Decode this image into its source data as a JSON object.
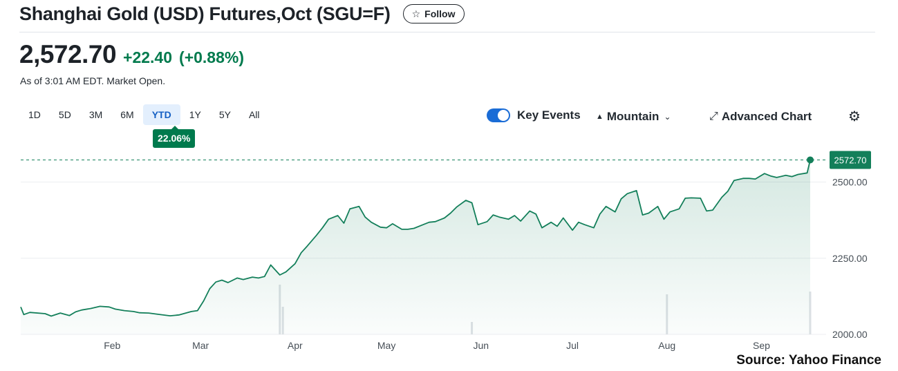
{
  "header": {
    "title": "Shanghai Gold (USD) Futures,Oct (SGU=F)",
    "follow_label": "Follow",
    "follow_icon": "star-icon"
  },
  "quote": {
    "price": "2,572.70",
    "change": "+22.40",
    "change_percent": "(+0.88%)",
    "as_of": "As of 3:01 AM EDT. Market Open.",
    "color_up": "#007a4d"
  },
  "ranges": {
    "items": [
      "1D",
      "5D",
      "3M",
      "6M",
      "YTD",
      "1Y",
      "5Y",
      "All"
    ],
    "active": "YTD",
    "active_return": "22.06%"
  },
  "controls": {
    "key_events_label": "Key Events",
    "key_events_on": true,
    "chart_type_label": "Mountain",
    "chart_type_icon": "mountain-icon",
    "advanced_label": "Advanced Chart",
    "advanced_icon": "expand-icon",
    "settings_icon": "gear-icon"
  },
  "chart_data": {
    "type": "area",
    "title": "",
    "xlabel": "",
    "ylabel": "",
    "x_tick_labels": [
      "Feb",
      "Mar",
      "Apr",
      "May",
      "Jun",
      "Jul",
      "Aug",
      "Sep"
    ],
    "x_tick_dates": [
      "2024-02-01",
      "2024-03-01",
      "2024-04-01",
      "2024-05-01",
      "2024-06-01",
      "2024-07-01",
      "2024-08-01",
      "2024-09-01"
    ],
    "y_tick_labels": [
      "2000.00",
      "2250.00",
      "2500.00"
    ],
    "y_ticks": [
      2000,
      2250,
      2500
    ],
    "ylim": [
      2000,
      2610
    ],
    "xlim": [
      "2024-01-02",
      "2024-09-17"
    ],
    "reference_value": 2572.7,
    "reference_label": "2572.70",
    "grid": "horizontal",
    "line_color": "#137f5a",
    "series": [
      {
        "x": [
          "2024-01-02",
          "2024-01-03",
          "2024-01-05",
          "2024-01-10",
          "2024-01-12",
          "2024-01-15",
          "2024-01-18",
          "2024-01-20",
          "2024-01-22",
          "2024-01-25",
          "2024-01-28",
          "2024-01-31",
          "2024-02-02",
          "2024-02-05",
          "2024-02-08",
          "2024-02-10",
          "2024-02-13",
          "2024-02-16",
          "2024-02-20",
          "2024-02-23",
          "2024-02-27",
          "2024-02-29",
          "2024-03-02",
          "2024-03-04",
          "2024-03-06",
          "2024-03-08",
          "2024-03-10",
          "2024-03-13",
          "2024-03-15",
          "2024-03-18",
          "2024-03-20",
          "2024-03-22",
          "2024-03-24",
          "2024-03-27",
          "2024-03-29",
          "2024-04-01",
          "2024-04-03",
          "2024-04-05",
          "2024-04-08",
          "2024-04-10",
          "2024-04-12",
          "2024-04-15",
          "2024-04-17",
          "2024-04-19",
          "2024-04-22",
          "2024-04-24",
          "2024-04-26",
          "2024-04-29",
          "2024-05-01",
          "2024-05-03",
          "2024-05-06",
          "2024-05-08",
          "2024-05-10",
          "2024-05-13",
          "2024-05-15",
          "2024-05-17",
          "2024-05-20",
          "2024-05-22",
          "2024-05-24",
          "2024-05-27",
          "2024-05-29",
          "2024-05-31",
          "2024-06-03",
          "2024-06-05",
          "2024-06-07",
          "2024-06-10",
          "2024-06-12",
          "2024-06-14",
          "2024-06-17",
          "2024-06-19",
          "2024-06-21",
          "2024-06-24",
          "2024-06-26",
          "2024-06-28",
          "2024-07-01",
          "2024-07-03",
          "2024-07-05",
          "2024-07-08",
          "2024-07-10",
          "2024-07-12",
          "2024-07-15",
          "2024-07-17",
          "2024-07-19",
          "2024-07-22",
          "2024-07-24",
          "2024-07-26",
          "2024-07-29",
          "2024-07-31",
          "2024-08-02",
          "2024-08-05",
          "2024-08-07",
          "2024-08-09",
          "2024-08-12",
          "2024-08-14",
          "2024-08-16",
          "2024-08-19",
          "2024-08-21",
          "2024-08-23",
          "2024-08-26",
          "2024-08-28",
          "2024-08-30",
          "2024-09-02",
          "2024-09-04",
          "2024-09-06",
          "2024-09-09",
          "2024-09-11",
          "2024-09-13",
          "2024-09-16",
          "2024-09-17"
        ],
        "y": [
          2090,
          2065,
          2072,
          2068,
          2060,
          2070,
          2062,
          2074,
          2080,
          2085,
          2092,
          2090,
          2083,
          2078,
          2075,
          2071,
          2070,
          2066,
          2061,
          2064,
          2075,
          2078,
          2110,
          2150,
          2172,
          2178,
          2170,
          2185,
          2180,
          2188,
          2185,
          2190,
          2228,
          2195,
          2205,
          2232,
          2268,
          2290,
          2325,
          2350,
          2378,
          2390,
          2365,
          2412,
          2420,
          2385,
          2368,
          2352,
          2350,
          2363,
          2345,
          2345,
          2348,
          2360,
          2368,
          2370,
          2382,
          2398,
          2418,
          2440,
          2432,
          2360,
          2370,
          2392,
          2385,
          2378,
          2390,
          2372,
          2405,
          2395,
          2350,
          2368,
          2355,
          2382,
          2342,
          2368,
          2360,
          2350,
          2395,
          2420,
          2402,
          2445,
          2462,
          2472,
          2392,
          2398,
          2420,
          2378,
          2402,
          2412,
          2447,
          2448,
          2447,
          2405,
          2408,
          2450,
          2470,
          2505,
          2512,
          2512,
          2510,
          2528,
          2520,
          2515,
          2522,
          2518,
          2525,
          2530,
          2572.7
        ]
      }
    ],
    "key_event_dates": [
      "2024-03-27",
      "2024-03-28",
      "2024-05-29",
      "2024-08-01",
      "2024-09-17"
    ]
  },
  "footer": {
    "source": "Source: Yahoo Finance"
  }
}
